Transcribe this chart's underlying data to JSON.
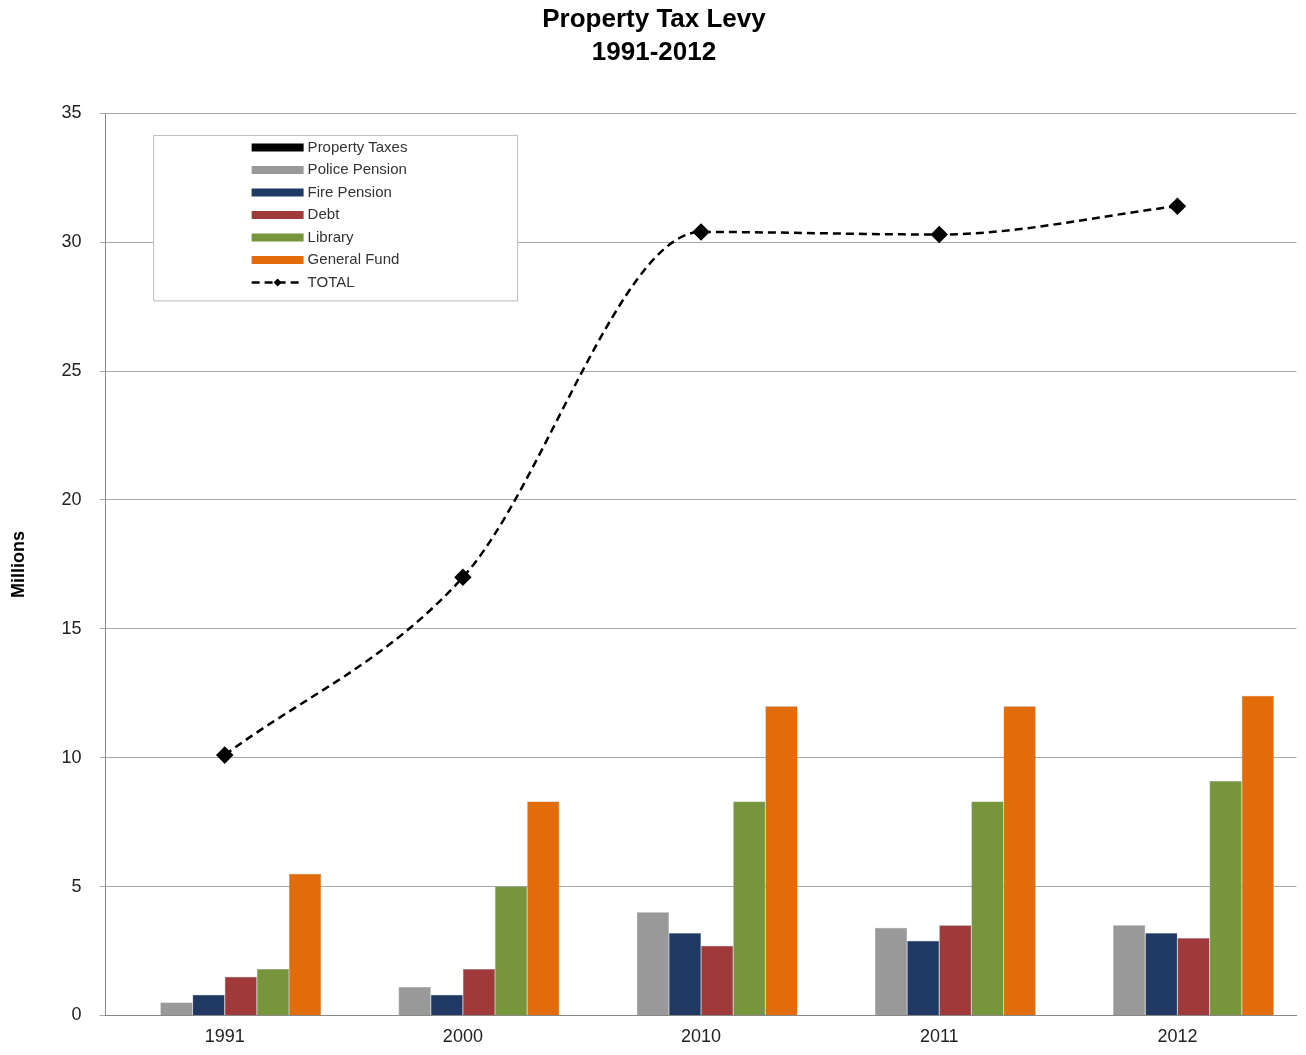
{
  "chart_data": {
    "type": "bar",
    "title": "Property Tax Levy",
    "subtitle": "1991-2012",
    "ylabel": "Millions",
    "categories": [
      "1991",
      "2000",
      "2010",
      "2011",
      "2012"
    ],
    "series": [
      {
        "name": "Property Taxes",
        "color": "#000000",
        "values": [
          null,
          null,
          null,
          null,
          null
        ]
      },
      {
        "name": "Police Pension",
        "color": "#999999",
        "values": [
          0.5,
          1.1,
          4.0,
          3.4,
          3.5
        ]
      },
      {
        "name": "Fire Pension",
        "color": "#1f3864",
        "values": [
          0.8,
          0.8,
          3.2,
          2.9,
          3.2
        ]
      },
      {
        "name": "Debt",
        "color": "#a0393a",
        "values": [
          1.5,
          1.8,
          2.7,
          3.5,
          3.0
        ]
      },
      {
        "name": "Library",
        "color": "#77963c",
        "values": [
          1.8,
          5.0,
          8.3,
          8.3,
          9.1
        ]
      },
      {
        "name": "General Fund",
        "color": "#e36c0a",
        "values": [
          5.5,
          8.3,
          12.0,
          12.0,
          12.4
        ]
      },
      {
        "name": "TOTAL",
        "type": "line",
        "color": "#000000",
        "marker": "diamond",
        "line_style": "dashed",
        "values": [
          10.1,
          17.0,
          30.4,
          30.3,
          31.4
        ]
      }
    ],
    "ylim": [
      0,
      35
    ],
    "yticks": [
      0,
      5,
      10,
      15,
      20,
      25,
      30,
      35
    ],
    "grid": "y",
    "legend": "top left"
  }
}
